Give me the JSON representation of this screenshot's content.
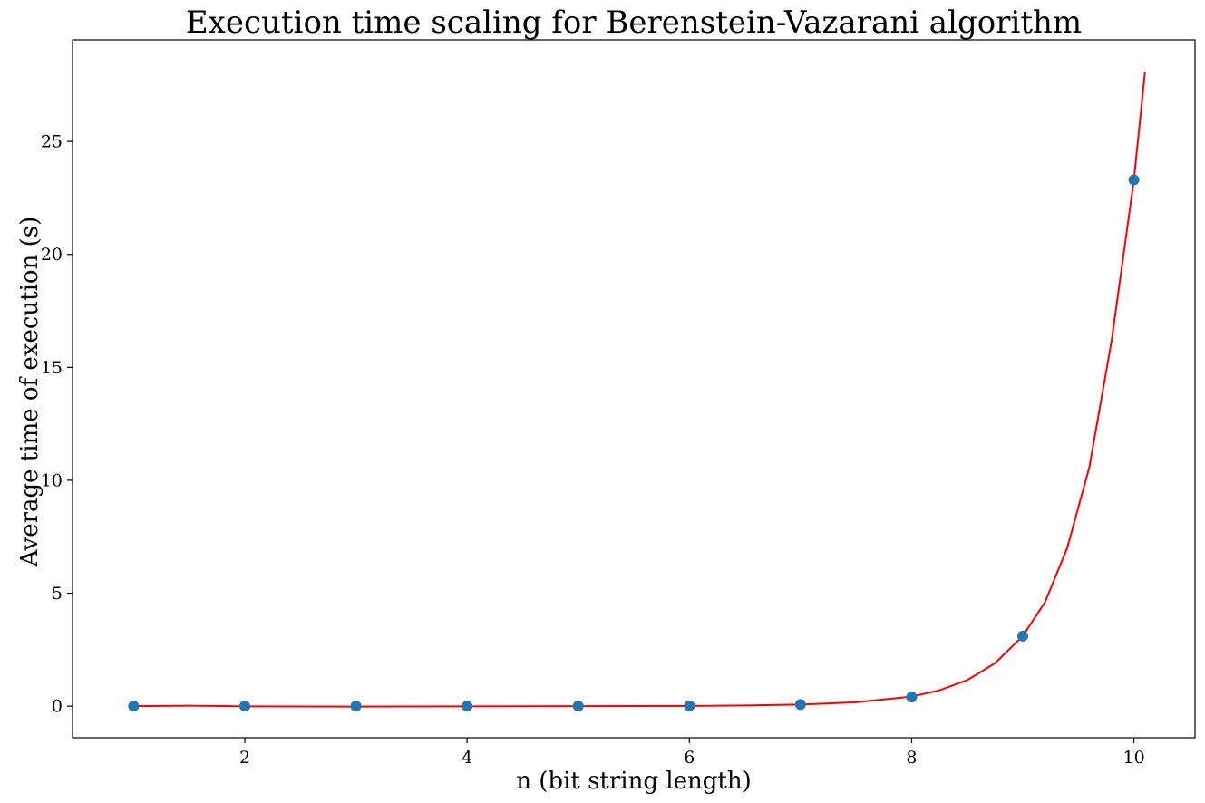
{
  "chart_data": {
    "type": "scatter",
    "title": "Execution time scaling for Berenstein-Vazarani algorithm",
    "xlabel": "n (bit string length)",
    "ylabel": "Average time of execution (s)",
    "xlim": [
      0.45,
      10.55
    ],
    "ylim": [
      -1.4,
      29.5
    ],
    "xticks": [
      2,
      4,
      6,
      8,
      10
    ],
    "yticks": [
      0,
      5,
      10,
      15,
      20,
      25
    ],
    "grid": false,
    "series": [
      {
        "kind": "scatter",
        "color": "#1f77b4",
        "x": [
          1,
          2,
          3,
          4,
          5,
          6,
          7,
          8,
          9,
          10
        ],
        "y": [
          0.0,
          0.0,
          0.0,
          0.0,
          0.0,
          0.01,
          0.07,
          0.4,
          3.1,
          23.3
        ]
      },
      {
        "kind": "line",
        "color": "#ff0000",
        "x": [
          1.0,
          1.5,
          2.0,
          3.0,
          4.0,
          5.0,
          6.0,
          6.5,
          7.0,
          7.5,
          8.0,
          8.25,
          8.5,
          8.75,
          9.0,
          9.2,
          9.4,
          9.6,
          9.8,
          10.0,
          10.1
        ],
        "y": [
          0.0,
          0.02,
          -0.01,
          -0.02,
          -0.01,
          0.0,
          0.01,
          0.03,
          0.07,
          0.17,
          0.42,
          0.7,
          1.15,
          1.9,
          3.1,
          4.6,
          7.0,
          10.6,
          16.2,
          23.3,
          28.1
        ]
      }
    ]
  }
}
